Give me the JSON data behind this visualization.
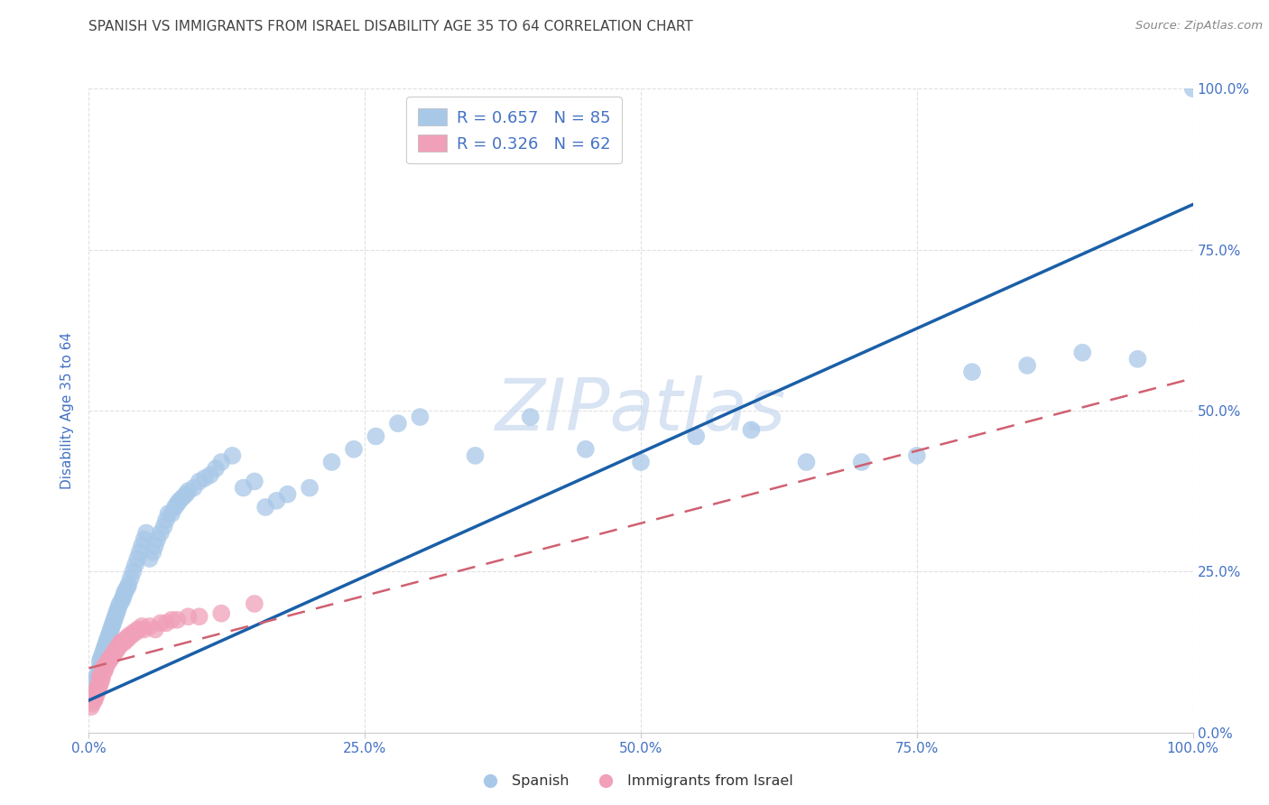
{
  "title": "SPANISH VS IMMIGRANTS FROM ISRAEL DISABILITY AGE 35 TO 64 CORRELATION CHART",
  "source": "Source: ZipAtlas.com",
  "ylabel": "Disability Age 35 to 64",
  "xlim": [
    0,
    1
  ],
  "ylim": [
    0,
    1
  ],
  "xticks": [
    0.0,
    0.25,
    0.5,
    0.75,
    1.0
  ],
  "yticks": [
    0.0,
    0.25,
    0.5,
    0.75,
    1.0
  ],
  "xticklabels": [
    "0.0%",
    "25.0%",
    "50.0%",
    "75.0%",
    "100.0%"
  ],
  "yticklabels": [
    "0.0%",
    "25.0%",
    "50.0%",
    "75.0%",
    "100.0%"
  ],
  "R_spanish": 0.657,
  "N_spanish": 85,
  "R_israel": 0.326,
  "N_israel": 62,
  "spanish_color": "#a8c8e8",
  "israel_color": "#f0a0b8",
  "spanish_line_color": "#1a5fa8",
  "israel_line_color": "#d06070",
  "background_color": "#ffffff",
  "grid_color": "#e0e0e0",
  "tick_color": "#4472c4",
  "watermark_color": "#c8d8ee",
  "spanish_x": [
    0.005,
    0.007,
    0.008,
    0.009,
    0.01,
    0.01,
    0.011,
    0.012,
    0.013,
    0.014,
    0.015,
    0.016,
    0.017,
    0.018,
    0.019,
    0.02,
    0.021,
    0.022,
    0.023,
    0.024,
    0.025,
    0.026,
    0.027,
    0.028,
    0.03,
    0.031,
    0.032,
    0.033,
    0.035,
    0.036,
    0.038,
    0.04,
    0.042,
    0.044,
    0.046,
    0.048,
    0.05,
    0.052,
    0.055,
    0.058,
    0.06,
    0.062,
    0.065,
    0.068,
    0.07,
    0.072,
    0.075,
    0.078,
    0.08,
    0.082,
    0.085,
    0.088,
    0.09,
    0.095,
    0.1,
    0.105,
    0.11,
    0.115,
    0.12,
    0.13,
    0.14,
    0.15,
    0.16,
    0.17,
    0.18,
    0.2,
    0.22,
    0.24,
    0.26,
    0.28,
    0.3,
    0.35,
    0.4,
    0.45,
    0.5,
    0.55,
    0.6,
    0.65,
    0.7,
    0.75,
    0.8,
    0.85,
    0.9,
    0.95,
    1.0
  ],
  "spanish_y": [
    0.08,
    0.085,
    0.09,
    0.095,
    0.1,
    0.11,
    0.115,
    0.12,
    0.125,
    0.13,
    0.135,
    0.14,
    0.145,
    0.15,
    0.155,
    0.16,
    0.165,
    0.17,
    0.175,
    0.18,
    0.185,
    0.19,
    0.195,
    0.2,
    0.205,
    0.21,
    0.215,
    0.22,
    0.225,
    0.23,
    0.24,
    0.25,
    0.26,
    0.27,
    0.28,
    0.29,
    0.3,
    0.31,
    0.27,
    0.28,
    0.29,
    0.3,
    0.31,
    0.32,
    0.33,
    0.34,
    0.34,
    0.35,
    0.355,
    0.36,
    0.365,
    0.37,
    0.375,
    0.38,
    0.39,
    0.395,
    0.4,
    0.41,
    0.42,
    0.43,
    0.38,
    0.39,
    0.35,
    0.36,
    0.37,
    0.38,
    0.42,
    0.44,
    0.46,
    0.48,
    0.49,
    0.43,
    0.49,
    0.44,
    0.42,
    0.46,
    0.47,
    0.42,
    0.42,
    0.43,
    0.56,
    0.57,
    0.59,
    0.58,
    1.0
  ],
  "israel_x": [
    0.002,
    0.003,
    0.004,
    0.005,
    0.005,
    0.006,
    0.006,
    0.007,
    0.007,
    0.008,
    0.008,
    0.009,
    0.009,
    0.01,
    0.01,
    0.01,
    0.011,
    0.011,
    0.012,
    0.012,
    0.013,
    0.013,
    0.014,
    0.014,
    0.015,
    0.015,
    0.016,
    0.017,
    0.018,
    0.019,
    0.02,
    0.021,
    0.022,
    0.023,
    0.024,
    0.025,
    0.026,
    0.027,
    0.028,
    0.029,
    0.03,
    0.032,
    0.033,
    0.035,
    0.036,
    0.038,
    0.04,
    0.042,
    0.044,
    0.046,
    0.048,
    0.05,
    0.055,
    0.06,
    0.065,
    0.07,
    0.075,
    0.08,
    0.09,
    0.1,
    0.12,
    0.15
  ],
  "israel_y": [
    0.04,
    0.045,
    0.05,
    0.05,
    0.055,
    0.055,
    0.06,
    0.06,
    0.065,
    0.065,
    0.07,
    0.07,
    0.075,
    0.075,
    0.08,
    0.085,
    0.08,
    0.09,
    0.085,
    0.09,
    0.095,
    0.1,
    0.095,
    0.1,
    0.1,
    0.105,
    0.105,
    0.11,
    0.11,
    0.115,
    0.115,
    0.12,
    0.12,
    0.125,
    0.125,
    0.13,
    0.13,
    0.135,
    0.135,
    0.14,
    0.14,
    0.14,
    0.145,
    0.145,
    0.15,
    0.15,
    0.155,
    0.155,
    0.16,
    0.16,
    0.165,
    0.16,
    0.165,
    0.16,
    0.17,
    0.17,
    0.175,
    0.175,
    0.18,
    0.18,
    0.185,
    0.2
  ]
}
